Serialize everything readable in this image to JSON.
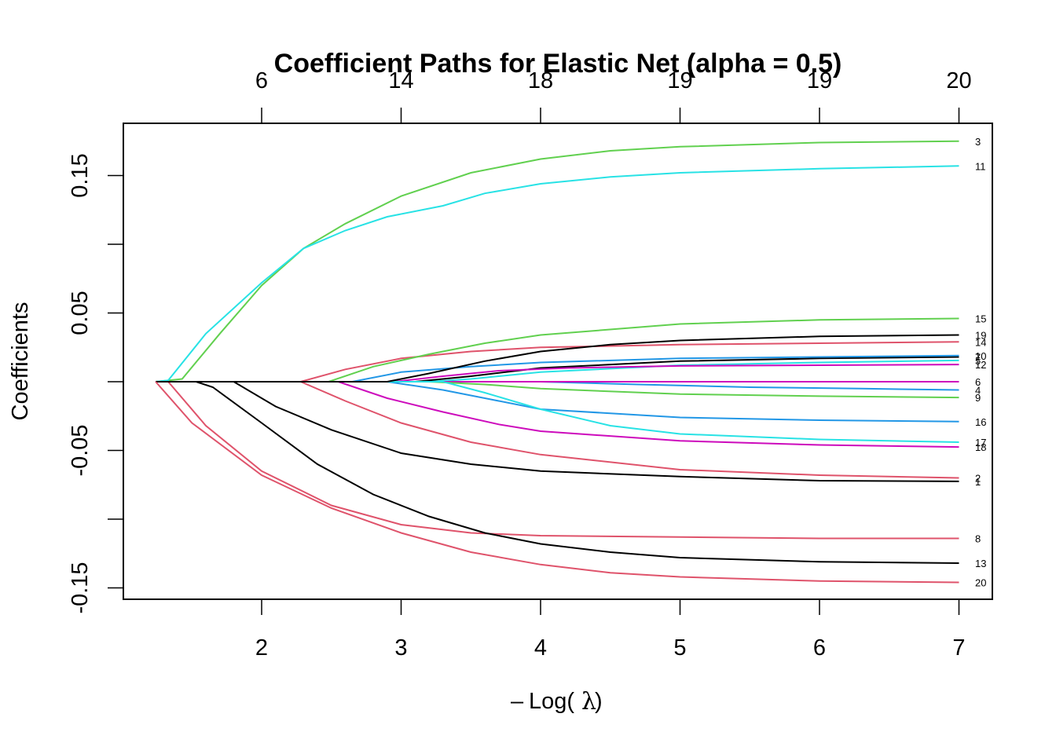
{
  "chart_data": {
    "type": "line",
    "title": "Coefficient Paths for Elastic Net (alpha = 0.5)",
    "xlabel": "-Log(λ)",
    "ylabel": "Coefficients",
    "xlim": [
      1.0,
      7.25
    ],
    "ylim": [
      -0.158,
      0.188
    ],
    "x_ticks": [
      2,
      3,
      4,
      5,
      6,
      7
    ],
    "y_ticks": [
      0.15,
      0.1,
      0.05,
      0.0,
      -0.05,
      -0.1,
      -0.15
    ],
    "y_tick_labels": [
      {
        "value": 0.15,
        "label": "0.15"
      },
      {
        "value": 0.05,
        "label": "0.05"
      },
      {
        "value": -0.05,
        "label": "-0.05"
      },
      {
        "value": -0.15,
        "label": "-0.15"
      }
    ],
    "top_axis": {
      "description": "number of nonzero coefficients",
      "ticks": [
        {
          "x": 2,
          "label": "6"
        },
        {
          "x": 3,
          "label": "14"
        },
        {
          "x": 4,
          "label": "18"
        },
        {
          "x": 5,
          "label": "19"
        },
        {
          "x": 6,
          "label": "19"
        },
        {
          "x": 7,
          "label": "20"
        }
      ]
    },
    "grid": false,
    "legend": "none (variable index labels at right end of each path)",
    "series": [
      {
        "name": "1",
        "color": "#000000",
        "points": [
          [
            1.24,
            0
          ],
          [
            1.8,
            0
          ],
          [
            2.1,
            -0.018
          ],
          [
            2.5,
            -0.035
          ],
          [
            3.0,
            -0.052
          ],
          [
            3.5,
            -0.06
          ],
          [
            4.0,
            -0.065
          ],
          [
            5.0,
            -0.069
          ],
          [
            6.0,
            -0.072
          ],
          [
            7.0,
            -0.0725
          ]
        ]
      },
      {
        "name": "2",
        "color": "#DF536B",
        "points": [
          [
            1.24,
            0
          ],
          [
            2.28,
            0
          ],
          [
            2.6,
            -0.014
          ],
          [
            3.0,
            -0.03
          ],
          [
            3.5,
            -0.044
          ],
          [
            4.0,
            -0.053
          ],
          [
            5.0,
            -0.064
          ],
          [
            6.0,
            -0.068
          ],
          [
            7.0,
            -0.07
          ]
        ]
      },
      {
        "name": "3",
        "color": "#61D04F",
        "points": [
          [
            1.24,
            0
          ],
          [
            1.43,
            0.002
          ],
          [
            1.7,
            0.035
          ],
          [
            2.0,
            0.07
          ],
          [
            2.3,
            0.097
          ],
          [
            2.6,
            0.115
          ],
          [
            3.0,
            0.135
          ],
          [
            3.5,
            0.152
          ],
          [
            4.0,
            0.162
          ],
          [
            4.5,
            0.168
          ],
          [
            5.0,
            0.171
          ],
          [
            6.0,
            0.174
          ],
          [
            7.0,
            0.175
          ]
        ]
      },
      {
        "name": "4",
        "color": "#2297E6",
        "points": [
          [
            1.24,
            0
          ],
          [
            3.2,
            0
          ],
          [
            4.0,
            0
          ],
          [
            4.7,
            -0.002
          ],
          [
            5.5,
            -0.004
          ],
          [
            6.3,
            -0.005
          ],
          [
            7.0,
            -0.006
          ]
        ]
      },
      {
        "name": "5",
        "color": "#28E2E5",
        "points": [
          [
            1.24,
            0
          ],
          [
            3.2,
            0
          ],
          [
            3.5,
            0.002
          ],
          [
            4.0,
            0.007
          ],
          [
            5.0,
            0.012
          ],
          [
            6.0,
            0.014
          ],
          [
            7.0,
            0.0155
          ]
        ]
      },
      {
        "name": "6",
        "color": "#CD0BBC",
        "points": [
          [
            1.24,
            0
          ],
          [
            7.0,
            0
          ]
        ]
      },
      {
        "name": "7",
        "color": "#000000",
        "points": [
          [
            1.24,
            0
          ],
          [
            3.1,
            0
          ],
          [
            3.5,
            0.004
          ],
          [
            4.0,
            0.01
          ],
          [
            5.0,
            0.015
          ],
          [
            6.0,
            0.017
          ],
          [
            7.0,
            0.018
          ]
        ]
      },
      {
        "name": "8",
        "color": "#DF536B",
        "points": [
          [
            1.24,
            0
          ],
          [
            1.33,
            0
          ],
          [
            1.6,
            -0.032
          ],
          [
            2.0,
            -0.065
          ],
          [
            2.5,
            -0.09
          ],
          [
            3.0,
            -0.104
          ],
          [
            3.5,
            -0.11
          ],
          [
            4.0,
            -0.112
          ],
          [
            5.0,
            -0.113
          ],
          [
            6.0,
            -0.114
          ],
          [
            7.0,
            -0.114
          ]
        ]
      },
      {
        "name": "9",
        "color": "#61D04F",
        "points": [
          [
            1.24,
            0
          ],
          [
            3.2,
            0
          ],
          [
            3.6,
            -0.002
          ],
          [
            4.0,
            -0.005
          ],
          [
            5.0,
            -0.009
          ],
          [
            6.0,
            -0.0105
          ],
          [
            7.0,
            -0.0115
          ]
        ]
      },
      {
        "name": "10",
        "color": "#2297E6",
        "points": [
          [
            1.24,
            0
          ],
          [
            2.65,
            0
          ],
          [
            3.0,
            0.007
          ],
          [
            3.5,
            0.011
          ],
          [
            4.0,
            0.014
          ],
          [
            5.0,
            0.017
          ],
          [
            6.0,
            0.018
          ],
          [
            7.0,
            0.019
          ]
        ]
      },
      {
        "name": "11",
        "color": "#28E2E5",
        "points": [
          [
            1.24,
            0
          ],
          [
            1.33,
            0.001
          ],
          [
            1.6,
            0.035
          ],
          [
            2.0,
            0.072
          ],
          [
            2.3,
            0.097
          ],
          [
            2.6,
            0.11
          ],
          [
            2.9,
            0.12
          ],
          [
            3.3,
            0.128
          ],
          [
            3.6,
            0.137
          ],
          [
            4.0,
            0.144
          ],
          [
            4.5,
            0.149
          ],
          [
            5.0,
            0.152
          ],
          [
            6.0,
            0.155
          ],
          [
            7.0,
            0.157
          ]
        ]
      },
      {
        "name": "12",
        "color": "#CD0BBC",
        "points": [
          [
            1.24,
            0
          ],
          [
            2.95,
            0
          ],
          [
            3.3,
            0.004
          ],
          [
            3.7,
            0.008
          ],
          [
            4.2,
            0.01
          ],
          [
            5.0,
            0.0115
          ],
          [
            6.0,
            0.012
          ],
          [
            7.0,
            0.0125
          ]
        ]
      },
      {
        "name": "13",
        "color": "#000000",
        "points": [
          [
            1.24,
            0
          ],
          [
            1.53,
            0
          ],
          [
            1.65,
            -0.004
          ],
          [
            2.0,
            -0.03
          ],
          [
            2.4,
            -0.06
          ],
          [
            2.8,
            -0.082
          ],
          [
            3.2,
            -0.098
          ],
          [
            3.6,
            -0.11
          ],
          [
            4.0,
            -0.118
          ],
          [
            4.5,
            -0.124
          ],
          [
            5.0,
            -0.128
          ],
          [
            6.0,
            -0.131
          ],
          [
            7.0,
            -0.132
          ]
        ]
      },
      {
        "name": "14",
        "color": "#DF536B",
        "points": [
          [
            1.24,
            0
          ],
          [
            2.28,
            0
          ],
          [
            2.6,
            0.009
          ],
          [
            3.0,
            0.017
          ],
          [
            3.5,
            0.022
          ],
          [
            4.0,
            0.025
          ],
          [
            5.0,
            0.027
          ],
          [
            6.0,
            0.028
          ],
          [
            7.0,
            0.029
          ]
        ]
      },
      {
        "name": "15",
        "color": "#61D04F",
        "points": [
          [
            1.24,
            0
          ],
          [
            2.48,
            0
          ],
          [
            2.8,
            0.011
          ],
          [
            3.2,
            0.02
          ],
          [
            3.6,
            0.028
          ],
          [
            4.0,
            0.034
          ],
          [
            5.0,
            0.042
          ],
          [
            6.0,
            0.045
          ],
          [
            7.0,
            0.046
          ]
        ]
      },
      {
        "name": "16",
        "color": "#2297E6",
        "points": [
          [
            1.24,
            0
          ],
          [
            2.9,
            0
          ],
          [
            3.3,
            -0.006
          ],
          [
            3.7,
            -0.014
          ],
          [
            4.0,
            -0.02
          ],
          [
            5.0,
            -0.026
          ],
          [
            6.0,
            -0.028
          ],
          [
            7.0,
            -0.029
          ]
        ]
      },
      {
        "name": "17",
        "color": "#28E2E5",
        "points": [
          [
            1.24,
            0
          ],
          [
            3.3,
            0
          ],
          [
            3.6,
            -0.008
          ],
          [
            4.0,
            -0.02
          ],
          [
            4.5,
            -0.032
          ],
          [
            5.0,
            -0.038
          ],
          [
            6.0,
            -0.042
          ],
          [
            7.0,
            -0.044
          ]
        ]
      },
      {
        "name": "18",
        "color": "#CD0BBC",
        "points": [
          [
            1.24,
            0
          ],
          [
            2.55,
            0
          ],
          [
            2.9,
            -0.012
          ],
          [
            3.3,
            -0.022
          ],
          [
            3.7,
            -0.031
          ],
          [
            4.0,
            -0.036
          ],
          [
            5.0,
            -0.043
          ],
          [
            6.0,
            -0.046
          ],
          [
            7.0,
            -0.0475
          ]
        ]
      },
      {
        "name": "19",
        "color": "#000000",
        "points": [
          [
            1.24,
            0
          ],
          [
            2.9,
            0
          ],
          [
            3.2,
            0.006
          ],
          [
            3.6,
            0.015
          ],
          [
            4.0,
            0.022
          ],
          [
            4.5,
            0.027
          ],
          [
            5.0,
            0.03
          ],
          [
            6.0,
            0.033
          ],
          [
            7.0,
            0.034
          ]
        ]
      },
      {
        "name": "20",
        "color": "#DF536B",
        "points": [
          [
            1.24,
            0
          ],
          [
            1.24,
            0
          ],
          [
            1.5,
            -0.03
          ],
          [
            2.0,
            -0.068
          ],
          [
            2.5,
            -0.092
          ],
          [
            3.0,
            -0.11
          ],
          [
            3.5,
            -0.124
          ],
          [
            4.0,
            -0.133
          ],
          [
            4.5,
            -0.139
          ],
          [
            5.0,
            -0.142
          ],
          [
            6.0,
            -0.145
          ],
          [
            7.0,
            -0.146
          ]
        ]
      }
    ]
  }
}
